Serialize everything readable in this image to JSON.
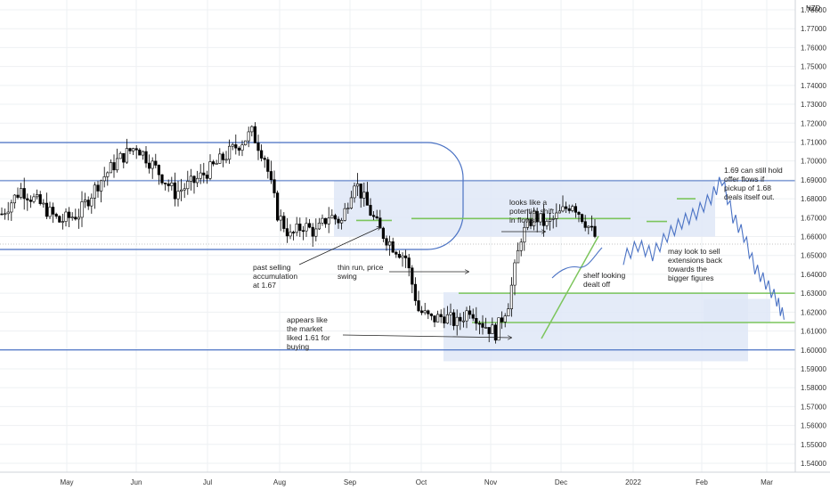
{
  "symbol": "NZD",
  "price_line_value": 1.6585,
  "chart_data": {
    "type": "candlestick",
    "title": "",
    "xlabel": "",
    "ylabel": "",
    "ylim": [
      1.535,
      1.795
    ],
    "grid": true,
    "y_ticks": [
      "1.78000",
      "1.77000",
      "1.76000",
      "1.75000",
      "1.74000",
      "1.73000",
      "1.72000",
      "1.71000",
      "1.70000",
      "1.69000",
      "1.68000",
      "1.67000",
      "1.66000",
      "1.65000",
      "1.64000",
      "1.63000",
      "1.62000",
      "1.61000",
      "1.60000",
      "1.59000",
      "1.58000",
      "1.57000",
      "1.56000",
      "1.55000",
      "1.54000"
    ],
    "x_ticks": [
      "May",
      "Jun",
      "Jul",
      "Aug",
      "Sep",
      "Oct",
      "Nov",
      "Dec",
      "2022",
      "Feb",
      "Mar"
    ],
    "price_path": [
      [
        0,
        1.672
      ],
      [
        6,
        1.685
      ],
      [
        12,
        1.677
      ],
      [
        18,
        1.668
      ],
      [
        24,
        1.672
      ],
      [
        30,
        1.688
      ],
      [
        36,
        1.7
      ],
      [
        42,
        1.708
      ],
      [
        48,
        1.696
      ],
      [
        54,
        1.683
      ],
      [
        60,
        1.689
      ],
      [
        66,
        1.697
      ],
      [
        72,
        1.706
      ],
      [
        78,
        1.715
      ],
      [
        82,
        1.702
      ],
      [
        86,
        1.672
      ],
      [
        90,
        1.66
      ],
      [
        94,
        1.666
      ],
      [
        98,
        1.662
      ],
      [
        102,
        1.671
      ],
      [
        106,
        1.668
      ],
      [
        110,
        1.69
      ],
      [
        114,
        1.676
      ],
      [
        118,
        1.663
      ],
      [
        122,
        1.655
      ],
      [
        126,
        1.649
      ],
      [
        130,
        1.621
      ],
      [
        134,
        1.616
      ],
      [
        138,
        1.618
      ],
      [
        142,
        1.614
      ],
      [
        146,
        1.622
      ],
      [
        150,
        1.614
      ],
      [
        154,
        1.609
      ],
      [
        158,
        1.625
      ],
      [
        162,
        1.66
      ],
      [
        166,
        1.671
      ],
      [
        170,
        1.666
      ],
      [
        174,
        1.672
      ],
      [
        178,
        1.678
      ],
      [
        182,
        1.668
      ],
      [
        185,
        1.66
      ]
    ],
    "horizontal_levels": [
      {
        "value": 1.6895,
        "kind": "level"
      },
      {
        "value": 1.6695,
        "kind": "zone-line"
      },
      {
        "value": 1.6685,
        "kind": "zone-line"
      },
      {
        "value": 1.63,
        "kind": "zone-line"
      },
      {
        "value": 1.6145,
        "kind": "zone-line"
      },
      {
        "value": 1.6,
        "kind": "level"
      },
      {
        "value": 1.68,
        "kind": "zone-line"
      }
    ],
    "zones": [
      {
        "from": 1.6895,
        "to": 1.66,
        "start": "Sep",
        "end": "Feb"
      },
      {
        "from": 1.6305,
        "to": 1.594,
        "start": "Oct",
        "end": "Feb"
      }
    ],
    "projection": [
      [
        0,
        1.648
      ],
      [
        8,
        1.655
      ],
      [
        16,
        1.65
      ],
      [
        24,
        1.66
      ],
      [
        32,
        1.667
      ],
      [
        40,
        1.672
      ],
      [
        48,
        1.68
      ],
      [
        54,
        1.69
      ],
      [
        60,
        1.67
      ],
      [
        66,
        1.66
      ],
      [
        72,
        1.643
      ],
      [
        78,
        1.635
      ],
      [
        84,
        1.626
      ],
      [
        88,
        1.616
      ]
    ]
  },
  "annotations": {
    "past_selling": [
      "past selling",
      "accumulation",
      "at 1.67"
    ],
    "thin_run": [
      "thin run, price",
      "swing"
    ],
    "appears_like": [
      "appears like",
      "the market",
      "liked 1.61 for",
      "buying"
    ],
    "looks_like": [
      "looks like a",
      "potential shift",
      "in flows."
    ],
    "shelf": [
      "shelf looking",
      "dealt off"
    ],
    "may_look": [
      "may look to sell",
      "extensions back",
      "towards the",
      "bigger figures"
    ],
    "can_hold": [
      "1.69 can still hold",
      "offer flows if",
      "pickup of 1.68",
      "deals itself out."
    ]
  },
  "colors": {
    "up": "#333333",
    "down": "#000000",
    "level": "#4a72c4",
    "zone_fill": "#dfe8f7",
    "green": "#7cc55c",
    "projection": "#4a72c4",
    "grid": "#eef0f3"
  }
}
